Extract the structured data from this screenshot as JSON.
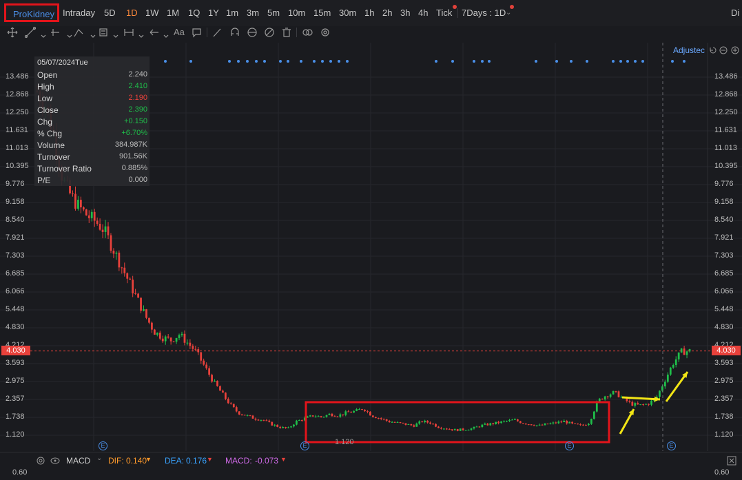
{
  "ticker": "ProKidney",
  "timeframes": [
    "Intraday",
    "5D",
    "1D",
    "1W",
    "1M",
    "1Q",
    "1Y",
    "1m",
    "3m",
    "5m",
    "10m",
    "15m",
    "30m",
    "1h",
    "2h",
    "3h",
    "4h",
    "Tick"
  ],
  "active_timeframe": "1D",
  "range_selector": "7Days : 1D",
  "right_cut_label": "Di",
  "adjusted_label": "Adjustec",
  "info": {
    "date": "05/07/2024Tue",
    "rows": [
      {
        "k": "Open",
        "v": "2.240"
      },
      {
        "k": "High",
        "v": "2.410"
      },
      {
        "k": "Low",
        "v": "2.190"
      },
      {
        "k": "Close",
        "v": "2.390"
      },
      {
        "k": "Chg",
        "v": "+0.150"
      },
      {
        "k": "% Chg",
        "v": "+6.70%"
      },
      {
        "k": "Volume",
        "v": "384.987K"
      },
      {
        "k": "Turnover",
        "v": "901.56K"
      },
      {
        "k": "Turnover Ratio",
        "v": "0.885%"
      },
      {
        "k": "P/E",
        "v": "0.000"
      }
    ]
  },
  "y_ticks": [
    "13.486",
    "12.868",
    "12.250",
    "11.631",
    "11.013",
    "10.395",
    "9.776",
    "9.158",
    "8.540",
    "7.921",
    "7.303",
    "6.685",
    "6.066",
    "5.448",
    "4.830",
    "4.212",
    "3.593",
    "2.975",
    "2.357",
    "1.738",
    "1.120"
  ],
  "last_price": "4.030",
  "low_marker": "1.120",
  "macd": {
    "label": "MACD",
    "dif_label": "DIF:",
    "dif": "0.140",
    "dea_label": "DEA:",
    "dea": "0.176",
    "macd_label": "MACD:",
    "macd_value": "-0.073",
    "axis_top": "0.60"
  },
  "event_badge": "E",
  "colors": {
    "up": "#1fbf4a",
    "down": "#e8413b",
    "accent": "#ff8a3c",
    "link": "#4a8fe8",
    "highlight_box": "#e3141b",
    "arrow": "#f2e515"
  },
  "chart_data": {
    "type": "candlestick",
    "y_axis_ticks": [
      13.486,
      12.868,
      12.25,
      11.631,
      11.013,
      10.395,
      9.776,
      9.158,
      8.54,
      7.921,
      7.303,
      6.685,
      6.066,
      5.448,
      4.83,
      4.212,
      3.593,
      2.975,
      2.357,
      1.738,
      1.12
    ],
    "last_price": 4.03,
    "marked_low": 1.12,
    "close_path": [
      13.0,
      12.5,
      11.5,
      10.0,
      9.4,
      9.0,
      8.7,
      8.5,
      8.2,
      7.6,
      7.0,
      6.4,
      5.8,
      5.2,
      4.7,
      4.5,
      4.4,
      4.6,
      4.3,
      4.0,
      3.5,
      3.0,
      2.6,
      2.2,
      1.9,
      1.8,
      1.7,
      1.65,
      1.5,
      1.4,
      1.35,
      1.6,
      1.7,
      1.8,
      1.75,
      1.85,
      1.8,
      1.9,
      1.95,
      2.05,
      1.8,
      1.7,
      1.6,
      1.55,
      1.5,
      1.45,
      1.6,
      1.55,
      1.4,
      1.35,
      1.3,
      1.32,
      1.35,
      1.45,
      1.5,
      1.55,
      1.6,
      1.65,
      1.55,
      1.5,
      1.45,
      1.5,
      1.55,
      1.6,
      1.5,
      1.45,
      1.55,
      2.3,
      2.5,
      2.6,
      2.4,
      2.2,
      2.15,
      2.2,
      2.4,
      3.0,
      3.6,
      4.0,
      4.03
    ]
  }
}
